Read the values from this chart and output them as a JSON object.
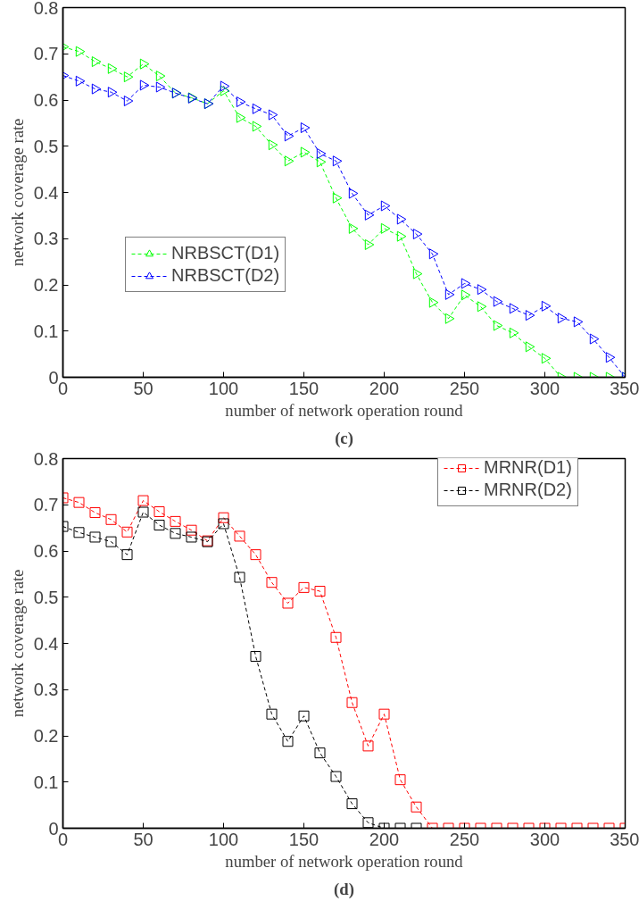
{
  "chart_data": [
    {
      "type": "line",
      "xlabel": "number of network operation round",
      "ylabel": "network coverage rate",
      "annotations": [
        "(c)"
      ],
      "x": [
        0,
        10,
        20,
        30,
        40,
        50,
        60,
        70,
        80,
        90,
        100,
        110,
        120,
        130,
        140,
        150,
        160,
        170,
        180,
        190,
        200,
        210,
        220,
        230,
        240,
        250,
        260,
        270,
        280,
        290,
        300,
        310,
        320,
        330,
        340,
        350
      ],
      "xlim": [
        0,
        350
      ],
      "ylim": [
        0,
        0.8
      ],
      "xticks": [
        0,
        50,
        100,
        150,
        200,
        250,
        300,
        350
      ],
      "yticks": [
        0,
        0.1,
        0.2,
        0.3,
        0.4,
        0.5,
        0.6,
        0.7,
        0.8
      ],
      "grid": false,
      "legend": "bottom left",
      "marker": "triangle",
      "line_style": "dashed",
      "series": [
        {
          "name": "NRBSCT(D1)",
          "color": "#00ff00",
          "values": [
            0.715,
            0.705,
            0.683,
            0.668,
            0.65,
            0.678,
            0.652,
            0.615,
            0.605,
            0.592,
            0.62,
            0.562,
            0.543,
            0.503,
            0.468,
            0.487,
            0.466,
            0.388,
            0.322,
            0.287,
            0.322,
            0.305,
            0.224,
            0.162,
            0.127,
            0.178,
            0.153,
            0.112,
            0.096,
            0.066,
            0.041,
            0,
            0,
            0,
            0,
            0
          ]
        },
        {
          "name": "NRBSCT(D2)",
          "color": "#0000ff",
          "values": [
            0.653,
            0.641,
            0.624,
            0.617,
            0.598,
            0.632,
            0.628,
            0.615,
            0.604,
            0.592,
            0.63,
            0.596,
            0.581,
            0.568,
            0.522,
            0.54,
            0.484,
            0.468,
            0.398,
            0.351,
            0.371,
            0.342,
            0.31,
            0.267,
            0.179,
            0.203,
            0.19,
            0.164,
            0.149,
            0.134,
            0.154,
            0.128,
            0.12,
            0.083,
            0.043,
            0
          ]
        }
      ]
    },
    {
      "type": "line",
      "xlabel": "number of network operation round",
      "ylabel": "network coverage rate",
      "annotations": [
        "(d)"
      ],
      "x": [
        0,
        10,
        20,
        30,
        40,
        50,
        60,
        70,
        80,
        90,
        100,
        110,
        120,
        130,
        140,
        150,
        160,
        170,
        180,
        190,
        200,
        210,
        220,
        230,
        240,
        250,
        260,
        270,
        280,
        290,
        300,
        310,
        320,
        330,
        340,
        350
      ],
      "xlim": [
        0,
        350
      ],
      "ylim": [
        0,
        0.8
      ],
      "xticks": [
        0,
        50,
        100,
        150,
        200,
        250,
        300,
        350
      ],
      "yticks": [
        0,
        0.1,
        0.2,
        0.3,
        0.4,
        0.5,
        0.6,
        0.7,
        0.8
      ],
      "grid": false,
      "legend": "top right",
      "marker": "square",
      "line_style": "dashed",
      "series": [
        {
          "name": "MRNR(D1)",
          "color": "#ff0000",
          "values": [
            0.715,
            0.705,
            0.683,
            0.668,
            0.641,
            0.709,
            0.685,
            0.664,
            0.645,
            0.622,
            0.672,
            0.632,
            0.592,
            0.532,
            0.487,
            0.521,
            0.513,
            0.413,
            0.272,
            0.178,
            0.247,
            0.105,
            0.046,
            0,
            0,
            0,
            0,
            0,
            0,
            0,
            0,
            0,
            0,
            0,
            0,
            0
          ]
        },
        {
          "name": "MRNR(D2)",
          "color": "#000000",
          "values": [
            0.653,
            0.64,
            0.63,
            0.62,
            0.592,
            0.684,
            0.656,
            0.638,
            0.63,
            0.62,
            0.659,
            0.543,
            0.372,
            0.247,
            0.188,
            0.243,
            0.163,
            0.112,
            0.053,
            0.012,
            0,
            0,
            0,
            null,
            null,
            null,
            null,
            null,
            null,
            null,
            null,
            null,
            null,
            null,
            null,
            null
          ]
        }
      ]
    }
  ]
}
